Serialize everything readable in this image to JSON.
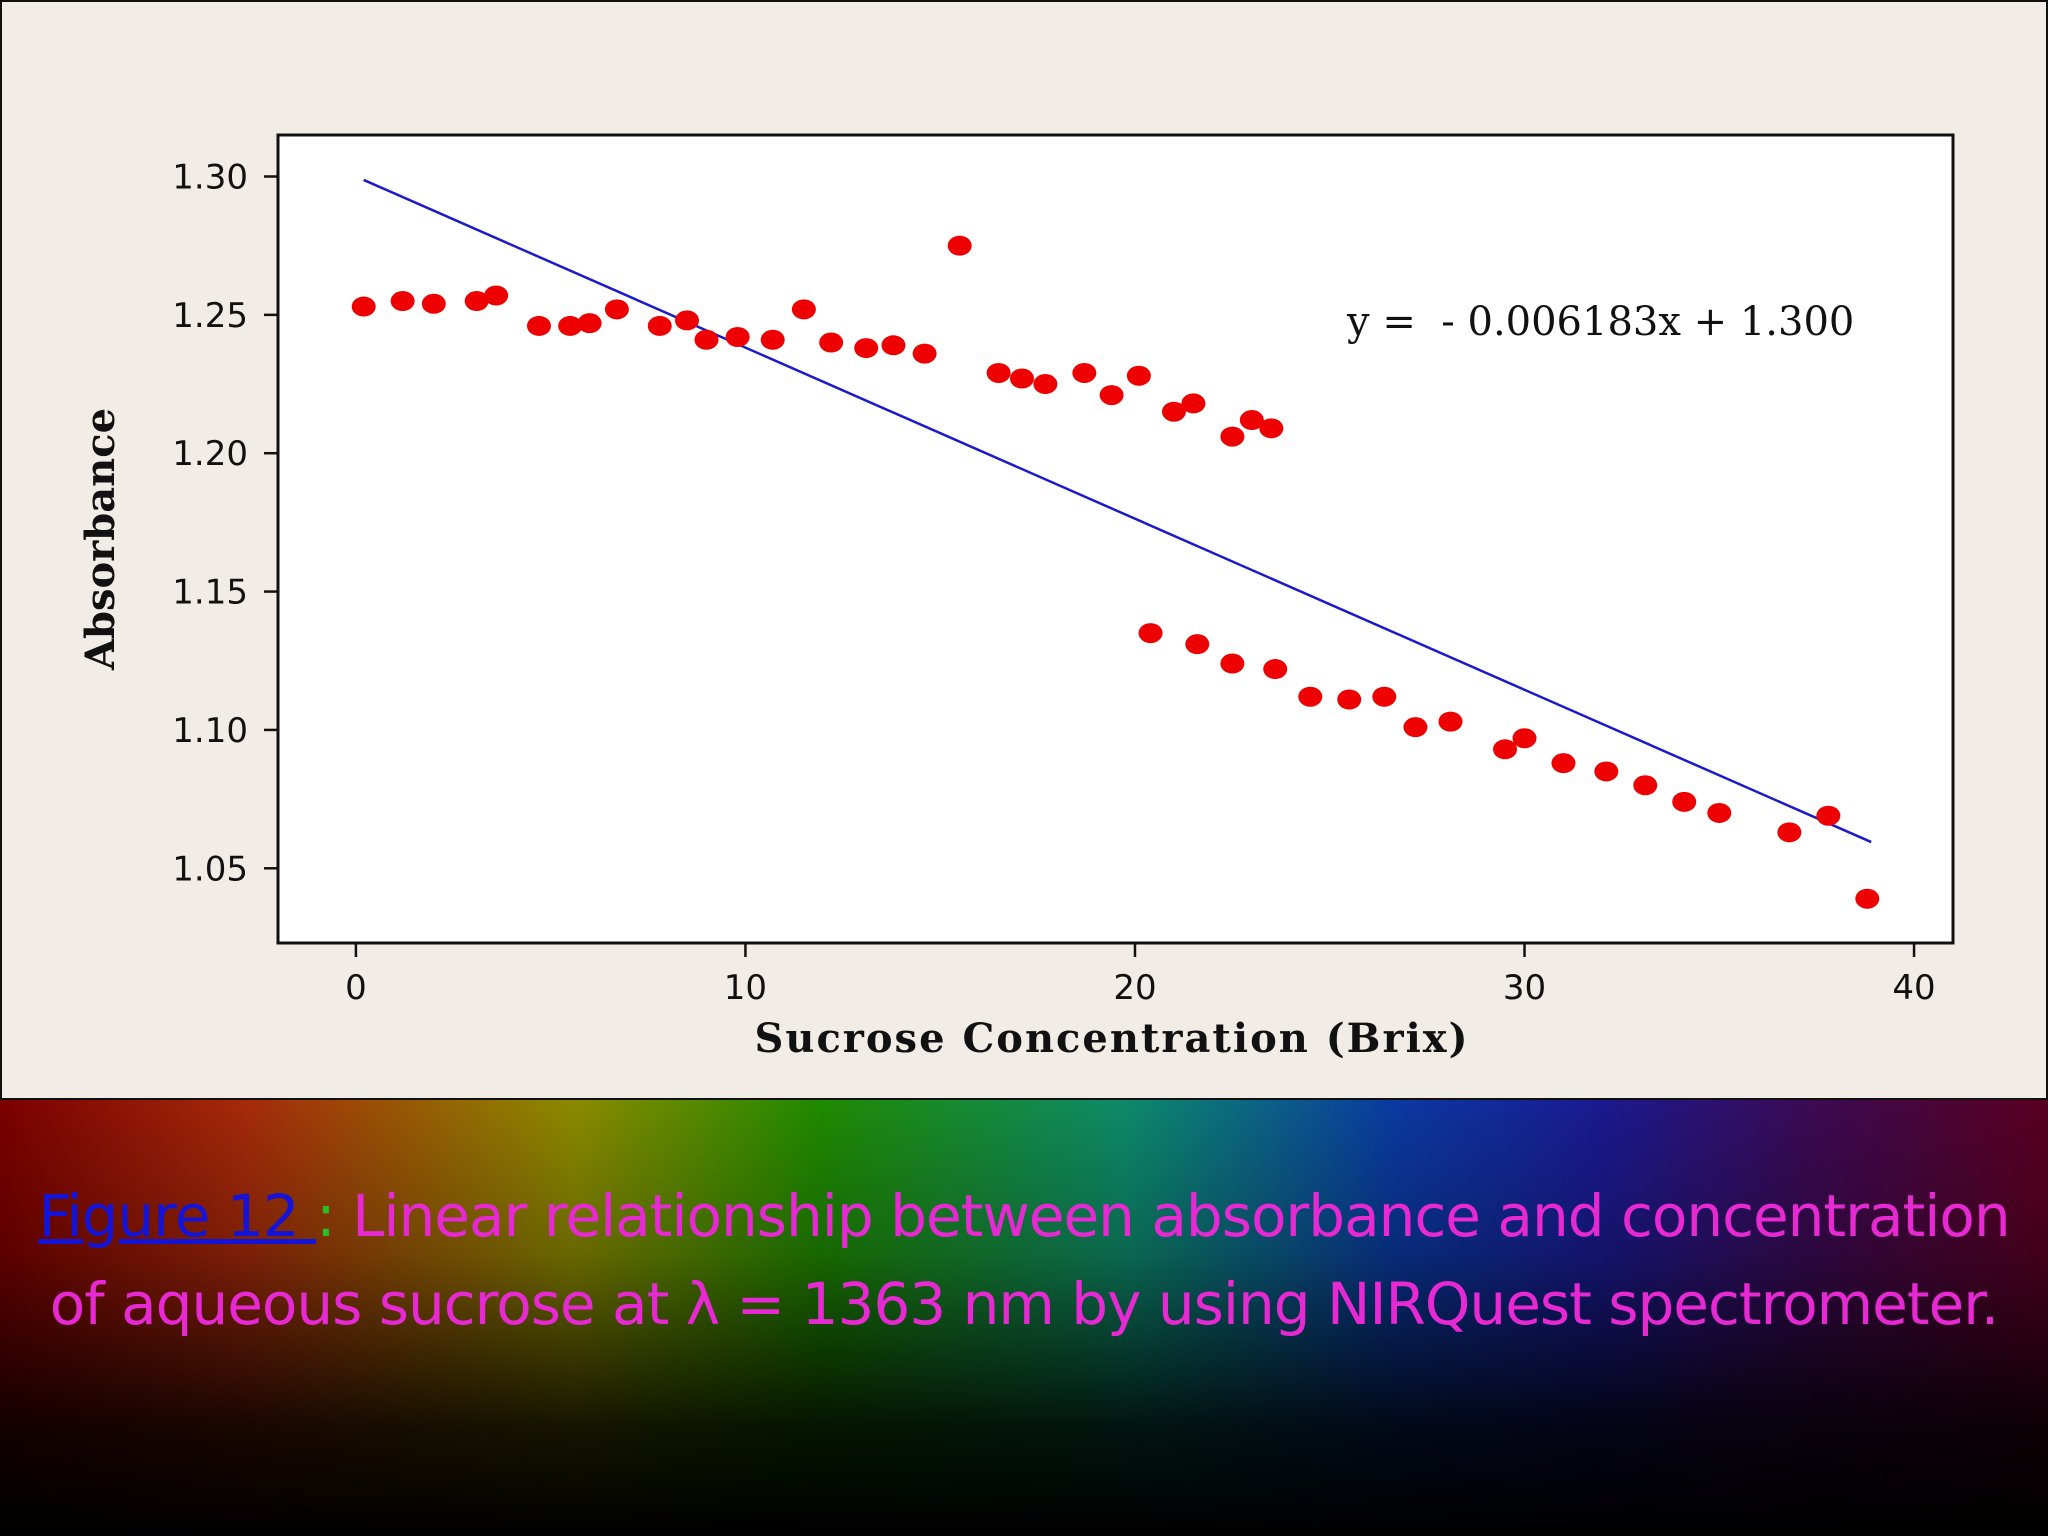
{
  "chart_data": {
    "type": "scatter",
    "xlabel": "Sucrose Concentration (Brix)",
    "ylabel": "Absorbance",
    "xlim": [
      -2,
      41
    ],
    "ylim": [
      1.023,
      1.315
    ],
    "xticks": [
      0,
      10,
      20,
      30,
      40
    ],
    "xtick_labels": [
      "0",
      "10",
      "20",
      "30",
      "40"
    ],
    "yticks": [
      1.05,
      1.1,
      1.15,
      1.2,
      1.25,
      1.3
    ],
    "ytick_labels": [
      "1.05",
      "1.10",
      "1.15",
      "1.20",
      "1.25",
      "1.30"
    ],
    "grid": false,
    "annotation": "y =  - 0.006183x + 1.300",
    "trendline": {
      "slope": -0.006183,
      "intercept": 1.3,
      "x_range": [
        0.2,
        38.9
      ],
      "color": "#1a1acc"
    },
    "marker_color": "#ee0000",
    "points": [
      [
        0.2,
        1.253
      ],
      [
        1.2,
        1.255
      ],
      [
        2.0,
        1.254
      ],
      [
        3.1,
        1.255
      ],
      [
        3.6,
        1.257
      ],
      [
        4.7,
        1.246
      ],
      [
        5.5,
        1.246
      ],
      [
        6.0,
        1.247
      ],
      [
        6.7,
        1.252
      ],
      [
        7.8,
        1.246
      ],
      [
        8.5,
        1.248
      ],
      [
        9.0,
        1.241
      ],
      [
        9.8,
        1.242
      ],
      [
        10.7,
        1.241
      ],
      [
        11.5,
        1.252
      ],
      [
        12.2,
        1.24
      ],
      [
        13.1,
        1.238
      ],
      [
        13.8,
        1.239
      ],
      [
        14.6,
        1.236
      ],
      [
        15.5,
        1.275
      ],
      [
        16.5,
        1.229
      ],
      [
        17.1,
        1.227
      ],
      [
        17.7,
        1.225
      ],
      [
        18.7,
        1.229
      ],
      [
        19.4,
        1.221
      ],
      [
        20.1,
        1.228
      ],
      [
        21.0,
        1.215
      ],
      [
        21.5,
        1.218
      ],
      [
        22.5,
        1.206
      ],
      [
        23.0,
        1.212
      ],
      [
        23.5,
        1.209
      ],
      [
        20.4,
        1.135
      ],
      [
        21.6,
        1.131
      ],
      [
        22.5,
        1.124
      ],
      [
        23.6,
        1.122
      ],
      [
        24.5,
        1.112
      ],
      [
        25.5,
        1.111
      ],
      [
        26.4,
        1.112
      ],
      [
        27.2,
        1.101
      ],
      [
        28.1,
        1.103
      ],
      [
        29.5,
        1.093
      ],
      [
        30.0,
        1.097
      ],
      [
        31.0,
        1.088
      ],
      [
        32.1,
        1.085
      ],
      [
        33.1,
        1.08
      ],
      [
        34.1,
        1.074
      ],
      [
        35.0,
        1.07
      ],
      [
        36.8,
        1.063
      ],
      [
        37.8,
        1.069
      ],
      [
        38.8,
        1.039
      ]
    ]
  },
  "caption": {
    "figure_label": "Figure 12 ",
    "separator": ":",
    "text": " Linear relationship between absorbance and concentration of aqueous sucrose at λ = 1363 nm by using NIRQuest spectrometer."
  }
}
